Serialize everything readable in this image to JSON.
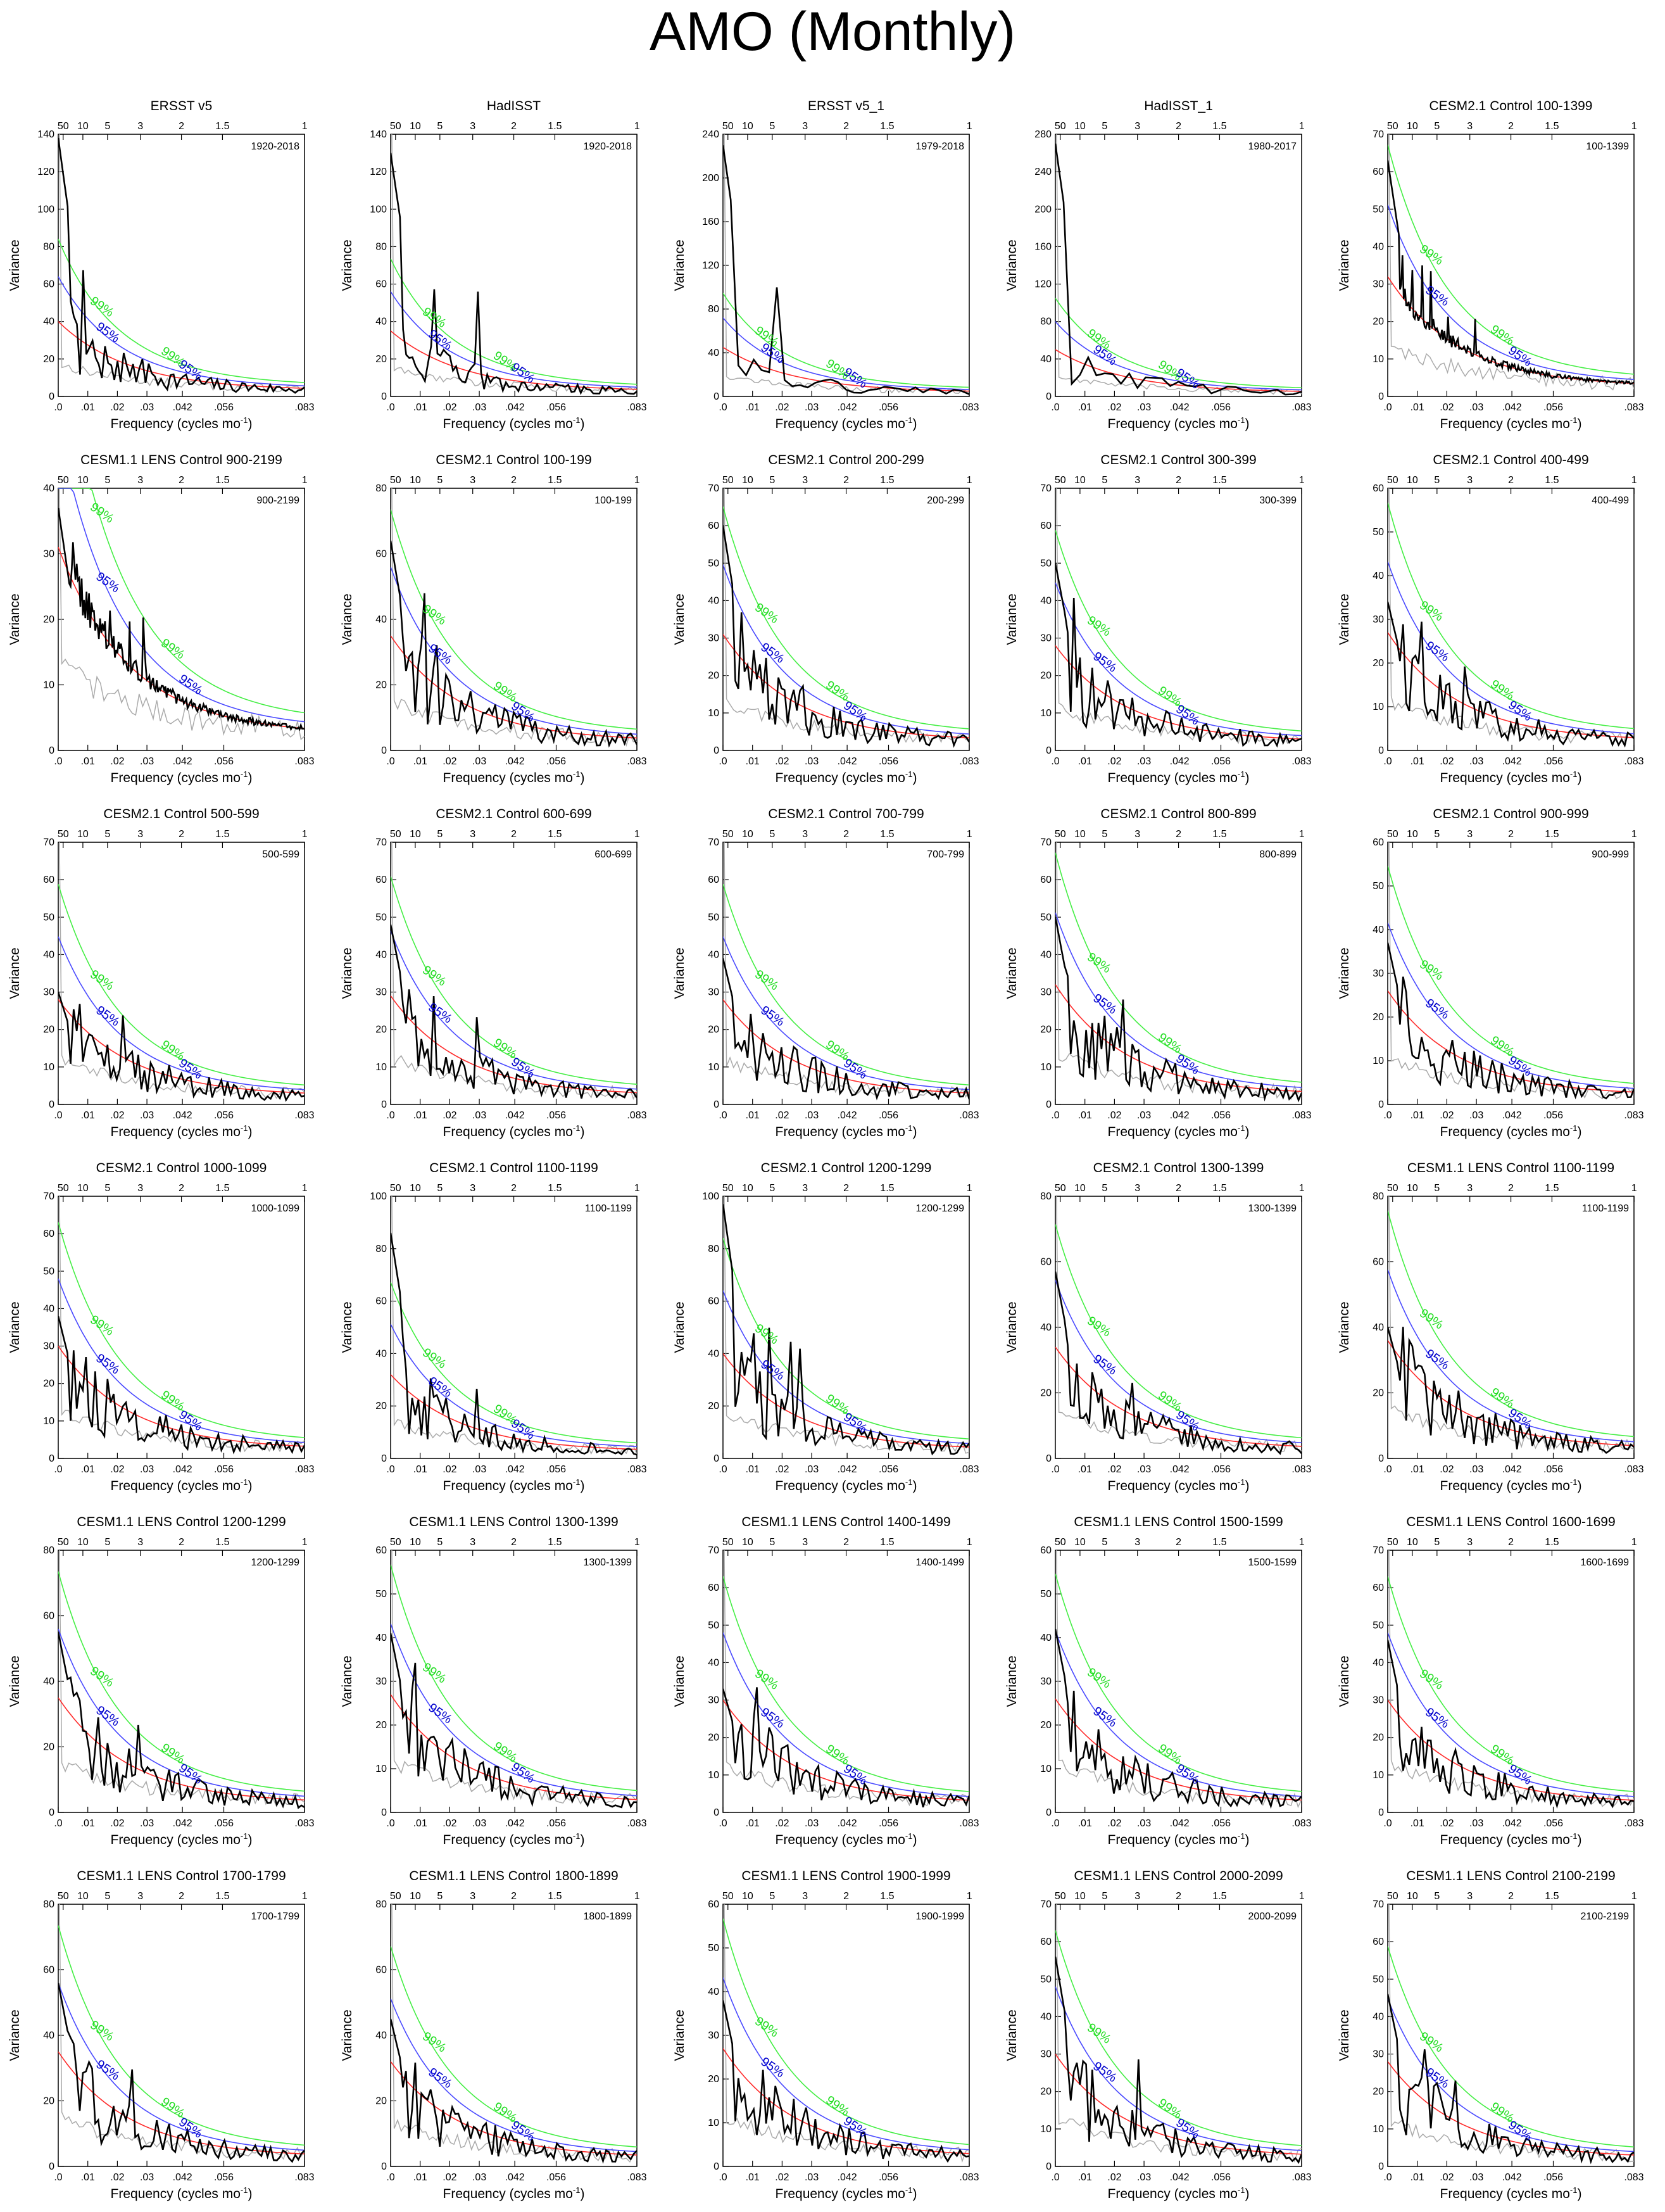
{
  "title": "AMO (Monthly)",
  "axis_labels": {
    "x": "Frequency (cycles mo",
    "x_sup": "-1",
    "x_close": ")",
    "y": "Variance"
  },
  "bottom_ticks": [
    ".0",
    ".01",
    ".02",
    ".03",
    ".042",
    ".056",
    ".083"
  ],
  "top_ticks": [
    "50",
    "10",
    "5",
    "3",
    "2",
    "1.5",
    "1"
  ],
  "conf_labels": {
    "c99": "99%",
    "c95": "95%"
  },
  "colors": {
    "spectrum": "#000000",
    "red_noise": "#ff2a2a",
    "c95": "#4a4aff",
    "c99": "#44ee44",
    "reference": "#aaaaaa",
    "c95_text": "#0000cc",
    "c99_text": "#22dd22"
  },
  "chart_data": [
    {
      "type": "line",
      "title": "ERSST v5",
      "period": "1920-2018",
      "ylim": [
        0,
        140
      ],
      "yticks": [
        0,
        20,
        40,
        60,
        80,
        100,
        120,
        140
      ],
      "n_years": 99,
      "peak": 138,
      "red0": 40
    },
    {
      "type": "line",
      "title": "HadISST",
      "period": "1920-2018",
      "ylim": [
        0,
        140
      ],
      "yticks": [
        0,
        20,
        40,
        60,
        80,
        100,
        120,
        140
      ],
      "n_years": 99,
      "peak": 130,
      "red0": 35
    },
    {
      "type": "line",
      "title": "ERSST v5_1",
      "period": "1979-2018",
      "ylim": [
        0,
        240
      ],
      "yticks": [
        0,
        40,
        80,
        120,
        160,
        200,
        240
      ],
      "n_years": 40,
      "peak": 230,
      "red0": 45
    },
    {
      "type": "line",
      "title": "HadISST_1",
      "period": "1980-2017",
      "ylim": [
        0,
        280
      ],
      "yticks": [
        0,
        40,
        80,
        120,
        160,
        200,
        240,
        280
      ],
      "n_years": 38,
      "peak": 270,
      "red0": 50
    },
    {
      "type": "line",
      "title": "CESM2.1 Control 100-1399",
      "period": "100-1399",
      "ylim": [
        0,
        70
      ],
      "yticks": [
        0,
        10,
        20,
        30,
        40,
        50,
        60,
        70
      ],
      "n_years": 1300,
      "peak": 63,
      "red0": 32
    },
    {
      "type": "line",
      "title": "CESM1.1 LENS Control 900-2199",
      "period": "900-2199",
      "ylim": [
        0,
        40
      ],
      "yticks": [
        0,
        10,
        20,
        30,
        40
      ],
      "n_years": 1300,
      "peak": 37,
      "red0": 31
    },
    {
      "type": "line",
      "title": "CESM2.1 Control 100-199",
      "period": "100-199",
      "ylim": [
        0,
        80
      ],
      "yticks": [
        0,
        20,
        40,
        60,
        80
      ],
      "n_years": 100,
      "peak": 64,
      "red0": 35
    },
    {
      "type": "line",
      "title": "CESM2.1 Control 200-299",
      "period": "200-299",
      "ylim": [
        0,
        70
      ],
      "yticks": [
        0,
        10,
        20,
        30,
        40,
        50,
        60,
        70
      ],
      "n_years": 100,
      "peak": 60,
      "red0": 31
    },
    {
      "type": "line",
      "title": "CESM2.1 Control 300-399",
      "period": "300-399",
      "ylim": [
        0,
        70
      ],
      "yticks": [
        0,
        10,
        20,
        30,
        40,
        50,
        60,
        70
      ],
      "n_years": 100,
      "peak": 50,
      "red0": 28
    },
    {
      "type": "line",
      "title": "CESM2.1 Control 400-499",
      "period": "400-499",
      "ylim": [
        0,
        60
      ],
      "yticks": [
        0,
        10,
        20,
        30,
        40,
        50,
        60
      ],
      "n_years": 100,
      "peak": 34,
      "red0": 27
    },
    {
      "type": "line",
      "title": "CESM2.1 Control 500-599",
      "period": "500-599",
      "ylim": [
        0,
        70
      ],
      "yticks": [
        0,
        10,
        20,
        30,
        40,
        50,
        60,
        70
      ],
      "n_years": 100,
      "peak": 30,
      "red0": 28
    },
    {
      "type": "line",
      "title": "CESM2.1 Control 600-699",
      "period": "600-699",
      "ylim": [
        0,
        70
      ],
      "yticks": [
        0,
        10,
        20,
        30,
        40,
        50,
        60,
        70
      ],
      "n_years": 100,
      "peak": 48,
      "red0": 29
    },
    {
      "type": "line",
      "title": "CESM2.1 Control 700-799",
      "period": "700-799",
      "ylim": [
        0,
        70
      ],
      "yticks": [
        0,
        10,
        20,
        30,
        40,
        50,
        60,
        70
      ],
      "n_years": 100,
      "peak": 39,
      "red0": 28
    },
    {
      "type": "line",
      "title": "CESM2.1 Control 800-899",
      "period": "800-899",
      "ylim": [
        0,
        70
      ],
      "yticks": [
        0,
        10,
        20,
        30,
        40,
        50,
        60,
        70
      ],
      "n_years": 100,
      "peak": 50,
      "red0": 32
    },
    {
      "type": "line",
      "title": "CESM2.1 Control 900-999",
      "period": "900-999",
      "ylim": [
        0,
        60
      ],
      "yticks": [
        0,
        10,
        20,
        30,
        40,
        50,
        60
      ],
      "n_years": 100,
      "peak": 37,
      "red0": 26
    },
    {
      "type": "line",
      "title": "CESM2.1 Control 1000-1099",
      "period": "1000-1099",
      "ylim": [
        0,
        70
      ],
      "yticks": [
        0,
        10,
        20,
        30,
        40,
        50,
        60,
        70
      ],
      "n_years": 100,
      "peak": 38,
      "red0": 30
    },
    {
      "type": "line",
      "title": "CESM2.1 Control 1100-1199",
      "period": "1100-1199",
      "ylim": [
        0,
        100
      ],
      "yticks": [
        0,
        20,
        40,
        60,
        80,
        100
      ],
      "n_years": 100,
      "peak": 86,
      "red0": 32
    },
    {
      "type": "line",
      "title": "CESM2.1 Control 1200-1299",
      "period": "1200-1299",
      "ylim": [
        0,
        100
      ],
      "yticks": [
        0,
        20,
        40,
        60,
        80,
        100
      ],
      "n_years": 100,
      "peak": 97,
      "red0": 40
    },
    {
      "type": "line",
      "title": "CESM2.1 Control 1300-1399",
      "period": "1300-1399",
      "ylim": [
        0,
        80
      ],
      "yticks": [
        0,
        20,
        40,
        60,
        80
      ],
      "n_years": 100,
      "peak": 57,
      "red0": 34
    },
    {
      "type": "line",
      "title": "CESM1.1 LENS Control 1100-1199",
      "period": "1100-1199",
      "ylim": [
        0,
        80
      ],
      "yticks": [
        0,
        20,
        40,
        60,
        80
      ],
      "n_years": 100,
      "peak": 40,
      "red0": 36
    },
    {
      "type": "line",
      "title": "CESM1.1 LENS Control 1200-1299",
      "period": "1200-1299",
      "ylim": [
        0,
        80
      ],
      "yticks": [
        0,
        20,
        40,
        60,
        80
      ],
      "n_years": 100,
      "peak": 55,
      "red0": 35
    },
    {
      "type": "line",
      "title": "CESM1.1 LENS Control 1300-1399",
      "period": "1300-1399",
      "ylim": [
        0,
        60
      ],
      "yticks": [
        0,
        10,
        20,
        30,
        40,
        50,
        60
      ],
      "n_years": 100,
      "peak": 41,
      "red0": 27
    },
    {
      "type": "line",
      "title": "CESM1.1 LENS Control 1400-1499",
      "period": "1400-1499",
      "ylim": [
        0,
        70
      ],
      "yticks": [
        0,
        10,
        20,
        30,
        40,
        50,
        60,
        70
      ],
      "n_years": 100,
      "peak": 33,
      "red0": 30
    },
    {
      "type": "line",
      "title": "CESM1.1 LENS Control 1500-1599",
      "period": "1500-1599",
      "ylim": [
        0,
        60
      ],
      "yticks": [
        0,
        10,
        20,
        30,
        40,
        50,
        60
      ],
      "n_years": 100,
      "peak": 42,
      "red0": 26
    },
    {
      "type": "line",
      "title": "CESM1.1 LENS Control 1600-1699",
      "period": "1600-1699",
      "ylim": [
        0,
        70
      ],
      "yticks": [
        0,
        10,
        20,
        30,
        40,
        50,
        60,
        70
      ],
      "n_years": 100,
      "peak": 46,
      "red0": 30
    },
    {
      "type": "line",
      "title": "CESM1.1 LENS Control 1700-1799",
      "period": "1700-1799",
      "ylim": [
        0,
        80
      ],
      "yticks": [
        0,
        20,
        40,
        60,
        80
      ],
      "n_years": 100,
      "peak": 56,
      "red0": 35
    },
    {
      "type": "line",
      "title": "CESM1.1 LENS Control 1800-1899",
      "period": "1800-1899",
      "ylim": [
        0,
        80
      ],
      "yticks": [
        0,
        20,
        40,
        60,
        80
      ],
      "n_years": 100,
      "peak": 45,
      "red0": 32
    },
    {
      "type": "line",
      "title": "CESM1.1 LENS Control 1900-1999",
      "period": "1900-1999",
      "ylim": [
        0,
        60
      ],
      "yticks": [
        0,
        10,
        20,
        30,
        40,
        50,
        60
      ],
      "n_years": 100,
      "peak": 38,
      "red0": 27
    },
    {
      "type": "line",
      "title": "CESM1.1 LENS Control 2000-2099",
      "period": "2000-2099",
      "ylim": [
        0,
        70
      ],
      "yticks": [
        0,
        10,
        20,
        30,
        40,
        50,
        60,
        70
      ],
      "n_years": 100,
      "peak": 56,
      "red0": 30
    },
    {
      "type": "line",
      "title": "CESM1.1 LENS Control 2100-2199",
      "period": "2100-2199",
      "ylim": [
        0,
        70
      ],
      "yticks": [
        0,
        10,
        20,
        30,
        40,
        50,
        60,
        70
      ],
      "n_years": 100,
      "peak": 46,
      "red0": 28
    }
  ]
}
